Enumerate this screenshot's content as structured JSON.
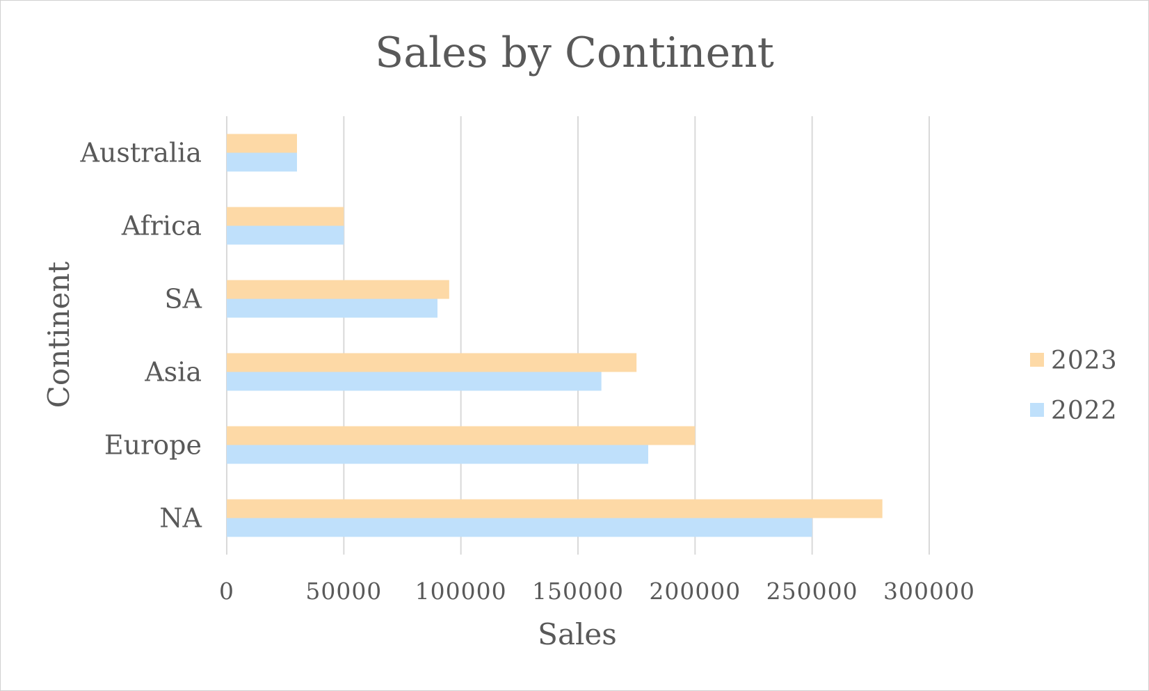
{
  "chart_data": {
    "type": "bar",
    "orientation": "horizontal",
    "title": "Sales by Continent",
    "xlabel": "Sales",
    "ylabel": "Continent",
    "categories": [
      "NA",
      "Europe",
      "Asia",
      "SA",
      "Africa",
      "Australia"
    ],
    "series": [
      {
        "name": "2022",
        "color": "#bfe0fb",
        "values": [
          250000,
          180000,
          160000,
          90000,
          50000,
          30000
        ]
      },
      {
        "name": "2023",
        "color": "#fdd9a6",
        "values": [
          280000,
          200000,
          175000,
          95000,
          50000,
          30000
        ]
      }
    ],
    "xlim": [
      0,
      300000
    ],
    "xticks": [
      0,
      50000,
      100000,
      150000,
      200000,
      250000,
      300000
    ],
    "xtick_labels": [
      "0",
      "50000",
      "100000",
      "150000",
      "200000",
      "250000",
      "300000"
    ],
    "grid": true,
    "legend_position": "right",
    "legend_order": [
      "2023",
      "2022"
    ]
  }
}
